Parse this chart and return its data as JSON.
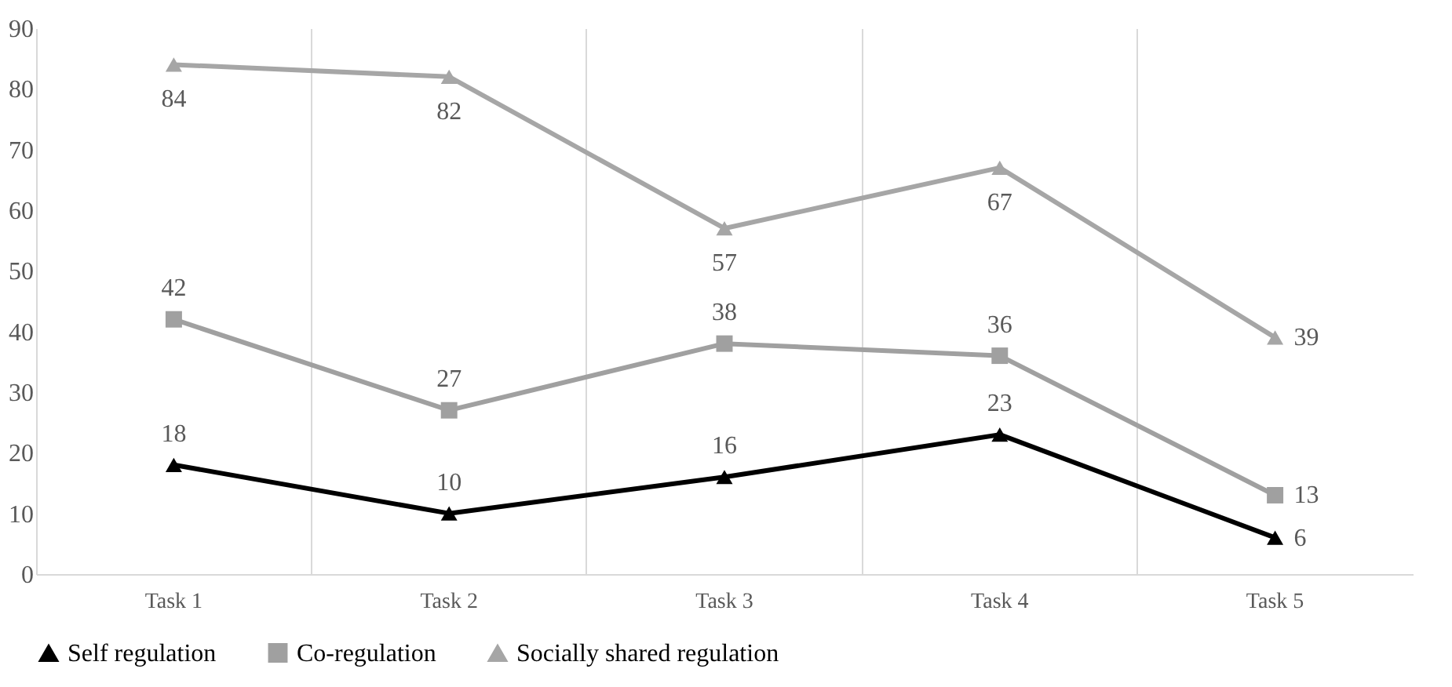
{
  "chart_data": {
    "type": "line",
    "categories": [
      "Task 1",
      "Task 2",
      "Task 3",
      "Task 4",
      "Task 5"
    ],
    "series": [
      {
        "name": "Self regulation",
        "color": "#000000",
        "marker": "triangle",
        "values": [
          18,
          10,
          16,
          23,
          6
        ]
      },
      {
        "name": "Co-regulation",
        "color": "#a0a0a0",
        "marker": "square",
        "values": [
          42,
          27,
          38,
          36,
          13
        ]
      },
      {
        "name": "Socially shared regulation",
        "color": "#a6a6a6",
        "marker": "triangle",
        "values": [
          84,
          82,
          57,
          67,
          39
        ]
      }
    ],
    "ylim": [
      0,
      90
    ],
    "yticks": [
      0,
      10,
      20,
      30,
      40,
      50,
      60,
      70,
      80,
      90
    ],
    "grid": "x",
    "legend": "bottom",
    "data_labels": true
  }
}
